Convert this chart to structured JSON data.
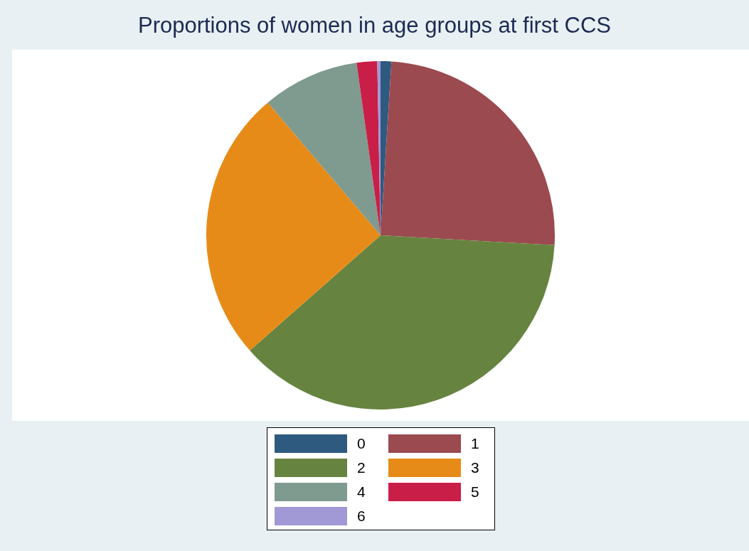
{
  "chart_data": {
    "type": "pie",
    "title": "Proportions of women in age groups at first CCS",
    "categories": [
      "0",
      "1",
      "2",
      "3",
      "4",
      "5",
      "6"
    ],
    "values": [
      1,
      24.9,
      37.6,
      25.3,
      9.0,
      1.9,
      0.3
    ],
    "colors": [
      "#2f5a80",
      "#9b4a4f",
      "#66843f",
      "#e78b18",
      "#7f9a8f",
      "#c91e47",
      "#a198d6"
    ],
    "legend": "bottom"
  }
}
